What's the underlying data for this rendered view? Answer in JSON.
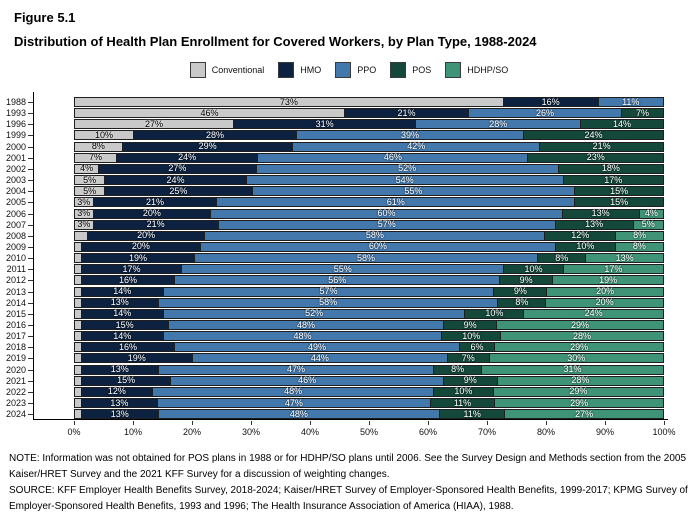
{
  "figure": {
    "label": "Figure 5.1",
    "title": "Distribution of Health Plan Enrollment for Covered Workers, by Plan Type, 1988-2024"
  },
  "legend": [
    {
      "name": "Conventional",
      "key": "conventional",
      "color": "#c9c9c9",
      "text_color": "#000000"
    },
    {
      "name": "HMO",
      "key": "hmo",
      "color": "#0c2240",
      "text_color": "#ffffff"
    },
    {
      "name": "PPO",
      "key": "ppo",
      "color": "#4378ac",
      "text_color": "#ffffff"
    },
    {
      "name": "POS",
      "key": "pos",
      "color": "#13483a",
      "text_color": "#ffffff"
    },
    {
      "name": "HDHP/SO",
      "key": "hdhpso",
      "color": "#3f9478",
      "text_color": "#ffffff"
    }
  ],
  "chart_data": {
    "type": "bar",
    "orientation": "horizontal-stacked",
    "title": "Distribution of Health Plan Enrollment for Covered Workers, by Plan Type, 1988-2024",
    "xlabel": "",
    "ylabel": "",
    "xlim": [
      0,
      100
    ],
    "x_ticks": [
      "0%",
      "10%",
      "20%",
      "30%",
      "40%",
      "50%",
      "60%",
      "70%",
      "80%",
      "90%",
      "100%"
    ],
    "legend_position": "top",
    "grid": false,
    "label_rule": "segment percent labels shown only for values of 3% or more",
    "categories": [
      "1988",
      "1993",
      "1996",
      "1999",
      "2000",
      "2001",
      "2002",
      "2003",
      "2004",
      "2005",
      "2006",
      "2007",
      "2008",
      "2009",
      "2010",
      "2011",
      "2012",
      "2013",
      "2014",
      "2015",
      "2016",
      "2017",
      "2018",
      "2019",
      "2020",
      "2021",
      "2022",
      "2023",
      "2024"
    ],
    "series": [
      {
        "name": "Conventional",
        "values": [
          73,
          46,
          27,
          10,
          8,
          7,
          4,
          5,
          5,
          3,
          3,
          3,
          2,
          1,
          1,
          1,
          1,
          1,
          1,
          1,
          1,
          1,
          1,
          1,
          1,
          1,
          1,
          1,
          1
        ]
      },
      {
        "name": "HMO",
        "values": [
          16,
          21,
          31,
          28,
          29,
          24,
          27,
          24,
          25,
          21,
          20,
          21,
          20,
          20,
          19,
          17,
          16,
          14,
          13,
          14,
          15,
          14,
          16,
          19,
          13,
          15,
          12,
          13,
          13
        ]
      },
      {
        "name": "PPO",
        "values": [
          11,
          26,
          28,
          39,
          42,
          46,
          52,
          54,
          55,
          61,
          60,
          57,
          58,
          60,
          58,
          55,
          56,
          57,
          58,
          52,
          48,
          48,
          49,
          44,
          47,
          46,
          48,
          47,
          48
        ]
      },
      {
        "name": "POS",
        "values": [
          null,
          7,
          14,
          24,
          21,
          23,
          18,
          17,
          15,
          15,
          13,
          13,
          12,
          10,
          8,
          10,
          9,
          9,
          8,
          10,
          9,
          10,
          6,
          7,
          8,
          9,
          10,
          11,
          11
        ]
      },
      {
        "name": "HDHP/SO",
        "values": [
          null,
          null,
          null,
          null,
          null,
          null,
          null,
          null,
          null,
          null,
          4,
          5,
          8,
          8,
          13,
          17,
          19,
          20,
          20,
          24,
          29,
          28,
          29,
          30,
          31,
          28,
          29,
          29,
          27
        ]
      }
    ]
  },
  "notes": {
    "note": "NOTE: Information was not obtained for POS plans in 1988 or for HDHP/SO plans until 2006. See the Survey Design and Methods section from the 2005 Kaiser/HRET Survey and the 2021 KFF Survey for a discussion of weighting changes.",
    "source": "SOURCE: KFF Employer Health Benefits Survey, 2018-2024; Kaiser/HRET Survey of Employer-Sponsored Health Benefits, 1999-2017; KPMG Survey of Employer-Sponsored Health Benefits, 1993 and 1996; The Health Insurance Association of America (HIAA), 1988."
  }
}
